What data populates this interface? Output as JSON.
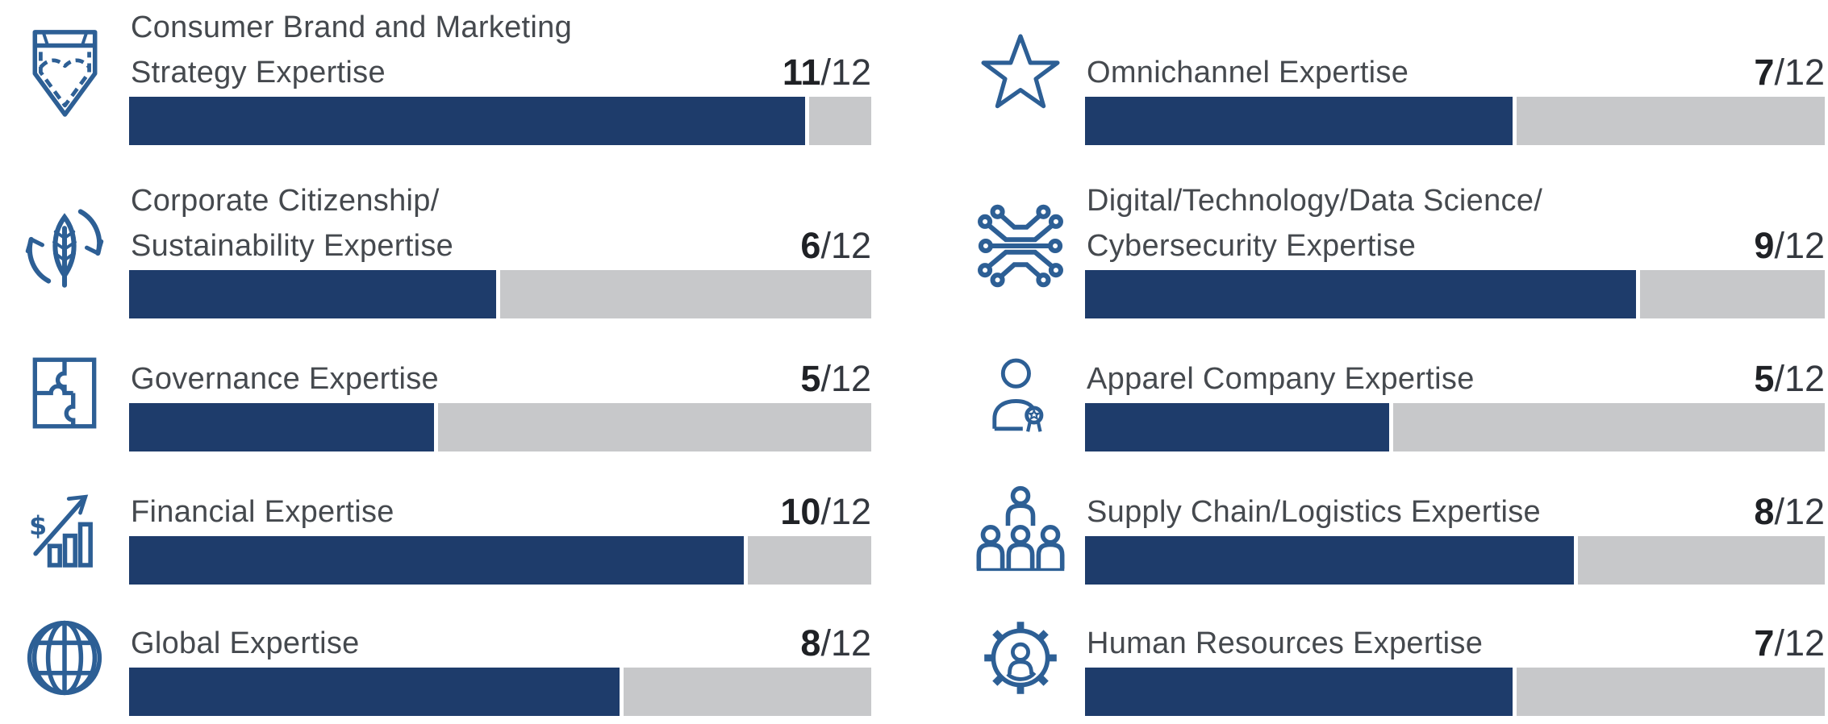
{
  "chart_data": {
    "type": "bar",
    "title": "",
    "max": 12,
    "denominator": "/12",
    "categories": [
      "Consumer Brand and Marketing Strategy Expertise",
      "Corporate Citizenship/Sustainability Expertise",
      "Governance Expertise",
      "Financial Expertise",
      "Global Expertise",
      "Omnichannel Expertise",
      "Digital/Technology/Data Science/Cybersecurity Expertise",
      "Apparel Company Expertise",
      "Supply Chain/Logistics Expertise",
      "Human Resources Expertise"
    ],
    "values": [
      11,
      6,
      5,
      10,
      8,
      7,
      9,
      5,
      8,
      7
    ],
    "layout": {
      "columns": 2,
      "bar_style": "horizontal progress",
      "legend": "none",
      "grid": "off"
    },
    "columns": {
      "left": [
        {
          "label": "Consumer Brand and Marketing Strategy Expertise",
          "lines": [
            "Consumer Brand and Marketing",
            "Strategy Expertise"
          ],
          "value": 11,
          "icon": "jeans-pocket-icon"
        },
        {
          "label": "Corporate Citizenship/Sustainability Expertise",
          "lines": [
            "Corporate Citizenship/",
            "Sustainability Expertise"
          ],
          "value": 6,
          "icon": "sustainability-recycle-leaf-icon"
        },
        {
          "label": "Governance Expertise",
          "lines": [
            "Governance Expertise"
          ],
          "value": 5,
          "icon": "puzzle-icon"
        },
        {
          "label": "Financial Expertise",
          "lines": [
            "Financial Expertise"
          ],
          "value": 10,
          "icon": "financial-growth-icon"
        },
        {
          "label": "Global Expertise",
          "lines": [
            "Global Expertise"
          ],
          "value": 8,
          "icon": "globe-icon"
        }
      ],
      "right": [
        {
          "label": "Omnichannel Expertise",
          "lines": [
            "Omnichannel Expertise"
          ],
          "value": 7,
          "icon": "star-icon"
        },
        {
          "label": "Digital/Technology/Data Science/Cybersecurity Expertise",
          "lines": [
            "Digital/Technology/Data Science/",
            "Cybersecurity Expertise"
          ],
          "value": 9,
          "icon": "circuit-icon"
        },
        {
          "label": "Apparel Company Expertise",
          "lines": [
            "Apparel Company Expertise"
          ],
          "value": 5,
          "icon": "person-award-icon"
        },
        {
          "label": "Supply Chain/Logistics Expertise",
          "lines": [
            "Supply Chain/Logistics Expertise"
          ],
          "value": 8,
          "icon": "people-group-icon"
        },
        {
          "label": "Human Resources Expertise",
          "lines": [
            "Human Resources Expertise"
          ],
          "value": 7,
          "icon": "gear-person-icon"
        }
      ]
    },
    "colors": {
      "bar_fill": "#1E3C6B",
      "bar_track": "#C7C8CA",
      "icon_stroke": "#2D5F95",
      "label_text": "#45494E",
      "value_text": "#1F2125",
      "denominator_text": "#34383F",
      "background": "#FFFFFF"
    }
  }
}
